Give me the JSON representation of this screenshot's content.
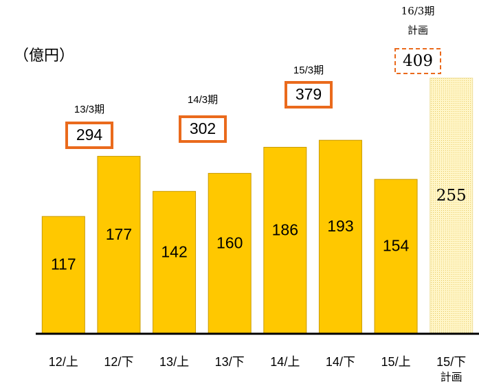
{
  "chart_data": {
    "type": "bar",
    "unit_label": "（億円）",
    "categories": [
      "12/上",
      "12/下",
      "13/上",
      "13/下",
      "14/上",
      "14/下",
      "15/上",
      "15/下"
    ],
    "values": [
      117,
      177,
      142,
      160,
      186,
      193,
      154,
      255
    ],
    "color": "#ffc800",
    "plan_color": "#fff2b8",
    "category_note": "計画",
    "ylim": [
      0,
      300
    ],
    "annotations": [
      {
        "period": "13/3期",
        "total": 294
      },
      {
        "period": "14/3期",
        "total": 302
      },
      {
        "period": "15/3期",
        "total": 379
      },
      {
        "period": "16/3期",
        "note": "計画",
        "total": 409
      }
    ]
  }
}
